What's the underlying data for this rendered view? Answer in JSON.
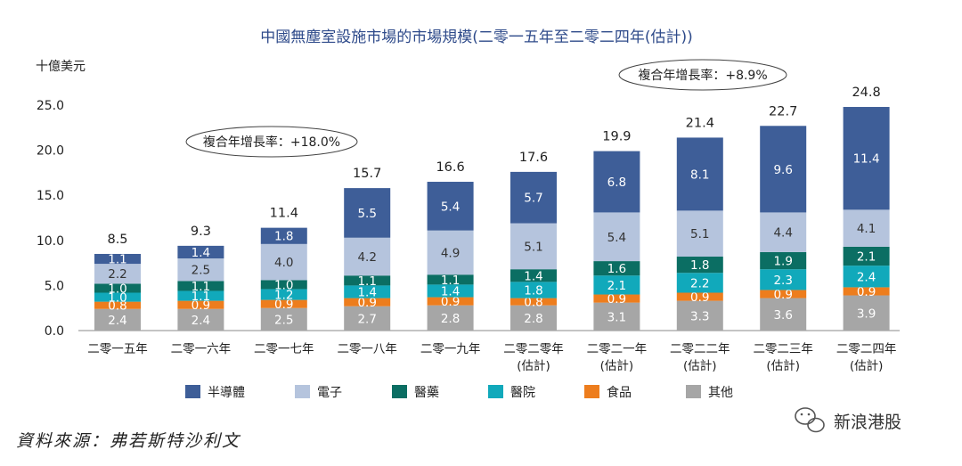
{
  "chart_data": {
    "type": "bar",
    "stacked": true,
    "title": "中國無塵室設施市場的市場規模(二零一五年至二零二四年(估計))",
    "ylabel": "十億美元",
    "ylim": [
      0,
      25
    ],
    "yticks": [
      "0.0",
      "5.0",
      "10.0",
      "15.0",
      "20.0",
      "25.0"
    ],
    "grid": false,
    "legend_position": "bottom",
    "categories": [
      [
        "二零一五年"
      ],
      [
        "二零一六年"
      ],
      [
        "二零一七年"
      ],
      [
        "二零一八年"
      ],
      [
        "二零一九年"
      ],
      [
        "二零二零年",
        "(估計)"
      ],
      [
        "二零二一年",
        "(估計)"
      ],
      [
        "二零二二年",
        "(估計)"
      ],
      [
        "二零二三年",
        "(估計)"
      ],
      [
        "二零二四年",
        "(估計)"
      ]
    ],
    "totals": [
      "8.5",
      "9.3",
      "11.4",
      "15.7",
      "16.6",
      "17.6",
      "19.9",
      "21.4",
      "22.7",
      "24.8"
    ],
    "series": [
      {
        "name": "其他",
        "color": "#a6a6a6",
        "label_color": "#ffffff",
        "values": [
          2.4,
          2.4,
          2.5,
          2.7,
          2.8,
          2.8,
          3.1,
          3.3,
          3.6,
          3.9
        ]
      },
      {
        "name": "食品",
        "color": "#ed7d1d",
        "label_color": "#ffffff",
        "values": [
          0.8,
          0.9,
          0.9,
          0.9,
          0.9,
          0.8,
          0.9,
          0.9,
          0.9,
          0.9
        ]
      },
      {
        "name": "醫院",
        "color": "#11a9bb",
        "label_color": "#ffffff",
        "values": [
          1.0,
          1.1,
          1.2,
          1.4,
          1.4,
          1.8,
          2.1,
          2.2,
          2.3,
          2.4
        ]
      },
      {
        "name": "醫藥",
        "color": "#0b6e63",
        "label_color": "#ffffff",
        "values": [
          1.0,
          1.1,
          1.0,
          1.1,
          1.1,
          1.4,
          1.6,
          1.8,
          1.9,
          2.1
        ]
      },
      {
        "name": "電子",
        "color": "#b5c4dd",
        "label_color": "#333333",
        "values": [
          2.2,
          2.5,
          4.0,
          4.2,
          4.9,
          5.1,
          5.4,
          5.1,
          4.4,
          4.1
        ]
      },
      {
        "name": "半導體",
        "color": "#3e5e98",
        "label_color": "#ffffff",
        "values": [
          1.1,
          1.4,
          1.8,
          5.5,
          5.4,
          5.7,
          6.8,
          8.1,
          9.6,
          11.4
        ]
      }
    ],
    "legend_order": [
      "半導體",
      "電子",
      "醫藥",
      "醫院",
      "食品",
      "其他"
    ],
    "annotations": [
      {
        "text": "複合年增長率：+18.0%"
      },
      {
        "text": "複合年增長率：+8.9%"
      }
    ]
  },
  "footer": {
    "source": "資料來源：弗若斯特沙利文",
    "watermark": "新浪港股"
  }
}
